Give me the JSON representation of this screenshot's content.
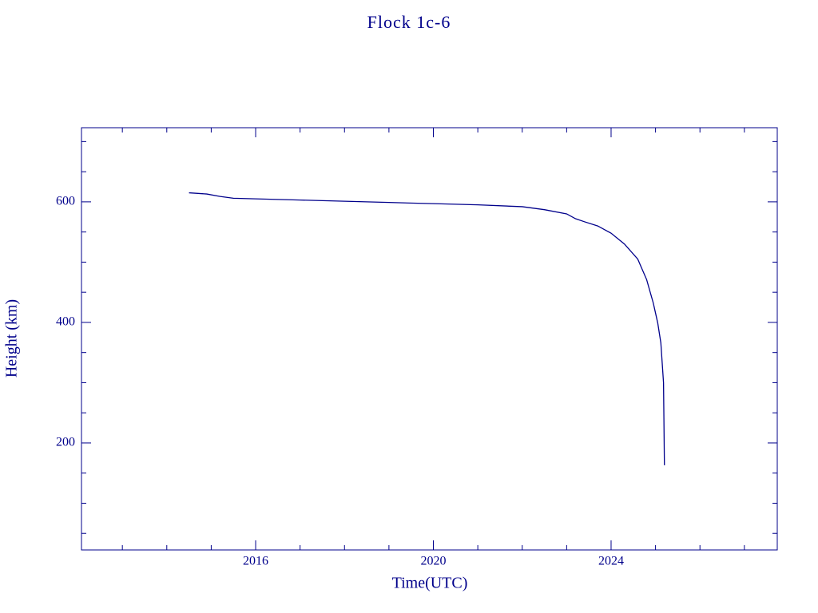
{
  "chart_data": {
    "type": "line",
    "title": "Flock 1c-6",
    "x_label": "Time(UTC)",
    "y_label": "Height (km)",
    "x": [
      2014.5,
      2014.9,
      2015.2,
      2015.5,
      2016,
      2017,
      2018,
      2019,
      2020,
      2021,
      2022,
      2022.5,
      2023,
      2023.2,
      2023.4,
      2023.7,
      2024,
      2024.3,
      2024.6,
      2024.8,
      2024.95,
      2025.05,
      2025.12,
      2025.18,
      2025.2
    ],
    "series": [
      {
        "name": "Flock 1c-6",
        "color": "#00008b",
        "values": [
          615,
          613,
          609,
          606,
          605,
          603,
          601,
          599,
          597,
          595,
          592,
          587,
          580,
          572,
          567,
          560,
          548,
          530,
          505,
          471,
          432,
          399,
          366,
          300,
          163
        ]
      }
    ],
    "xlim": [
      2012.08,
      2027.74
    ],
    "xticks": [
      2016,
      2020,
      2024
    ],
    "xminor_ticks": [
      2013,
      2014,
      2015,
      2017,
      2018,
      2019,
      2021,
      2022,
      2023,
      2025,
      2026,
      2027
    ],
    "ylim": [
      22.5,
      723
    ],
    "yticks": [
      200,
      400,
      600
    ],
    "yminor_ticks": [
      50,
      100,
      150,
      250,
      300,
      350,
      450,
      500,
      550,
      650,
      700
    ],
    "axis_color": "#00008b"
  }
}
